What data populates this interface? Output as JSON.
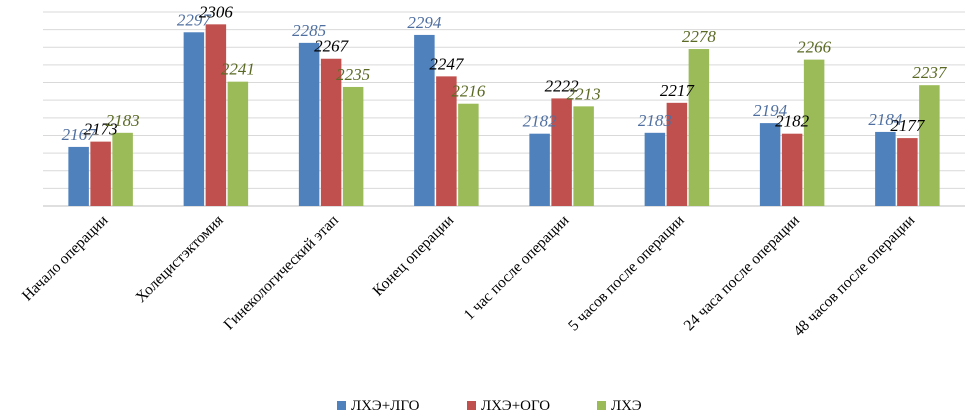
{
  "chart_data": {
    "type": "bar",
    "categories": [
      "Начало операции",
      "Холецистэктомия",
      "Гинекологический этап",
      "Конец операции",
      "1 час после операции",
      "5 часов после операции",
      "24 часа после операции",
      "48 часов после операции"
    ],
    "series": [
      {
        "name": "ЛХЭ+ЛГО",
        "color": "#4f81bd",
        "label_color": "#4f6fa0",
        "values": [
          2167,
          2297,
          2285,
          2294,
          2182,
          2183,
          2194,
          2184
        ]
      },
      {
        "name": "ЛХЭ+ОГО",
        "color": "#c0504d",
        "label_color": "#000000",
        "values": [
          2173,
          2306,
          2267,
          2247,
          2222,
          2217,
          2182,
          2177
        ]
      },
      {
        "name": "ЛХЭ",
        "color": "#9bbb59",
        "label_color": "#5a6a25",
        "values": [
          2183,
          2241,
          2235,
          2216,
          2213,
          2278,
          2266,
          2237
        ]
      }
    ],
    "value_labels": [
      [
        "2167",
        "2297",
        "2285",
        "2294",
        "2182",
        "2183",
        "2194",
        "2184"
      ],
      [
        "2173",
        "2306",
        "2267",
        "2247",
        "2222",
        "2217",
        "2182",
        "2177"
      ],
      [
        "2183",
        "2241",
        "2235",
        "2216",
        "2213",
        "2278",
        "2266",
        "2237"
      ]
    ],
    "ylim": [
      2100,
      2320
    ],
    "grid": true,
    "legend_position": "bottom"
  }
}
